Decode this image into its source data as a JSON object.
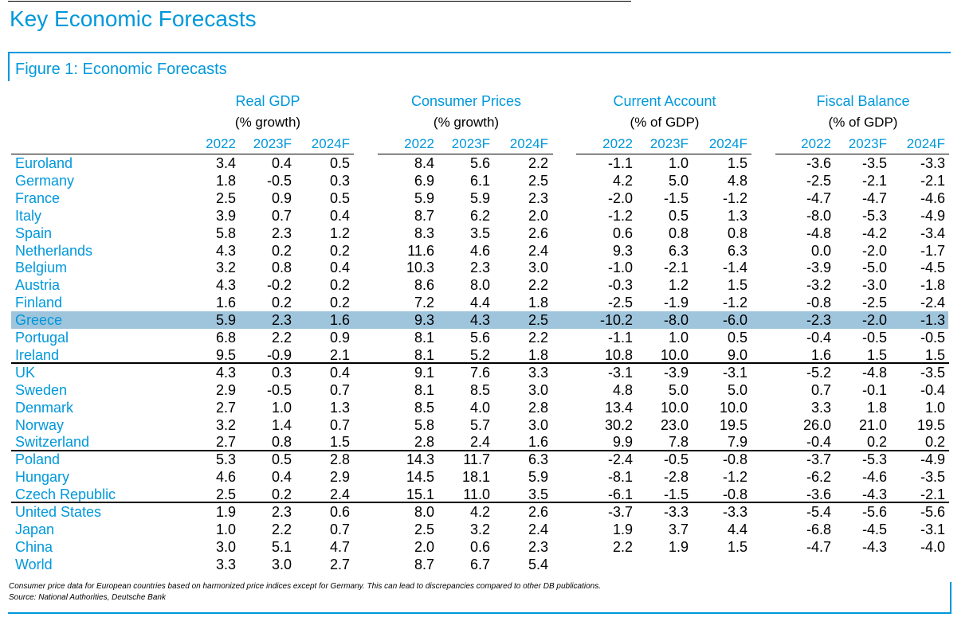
{
  "page_title": "Key Economic Forecasts",
  "figure_title": "Figure 1: Economic Forecasts",
  "groups": [
    {
      "title": "Real GDP",
      "unit": "(% growth)",
      "years": [
        "2022",
        "2023F",
        "2024F"
      ]
    },
    {
      "title": "Consumer Prices",
      "unit": "(% growth)",
      "years": [
        "2022",
        "2023F",
        "2024F"
      ]
    },
    {
      "title": "Current Account",
      "unit": "(% of GDP)",
      "years": [
        "2022",
        "2023F",
        "2024F"
      ]
    },
    {
      "title": "Fiscal Balance",
      "unit": "(% of GDP)",
      "years": [
        "2022",
        "2023F",
        "2024F"
      ]
    }
  ],
  "rows": [
    {
      "country": "Euroland",
      "values": [
        "3.4",
        "0.4",
        "0.5",
        "8.4",
        "5.6",
        "2.2",
        "-1.1",
        "1.0",
        "1.5",
        "-3.6",
        "-3.5",
        "-3.3"
      ]
    },
    {
      "country": "Germany",
      "values": [
        "1.8",
        "-0.5",
        "0.3",
        "6.9",
        "6.1",
        "2.5",
        "4.2",
        "5.0",
        "4.8",
        "-2.5",
        "-2.1",
        "-2.1"
      ]
    },
    {
      "country": "France",
      "values": [
        "2.5",
        "0.9",
        "0.5",
        "5.9",
        "5.9",
        "2.3",
        "-2.0",
        "-1.5",
        "-1.2",
        "-4.7",
        "-4.7",
        "-4.6"
      ]
    },
    {
      "country": "Italy",
      "values": [
        "3.9",
        "0.7",
        "0.4",
        "8.7",
        "6.2",
        "2.0",
        "-1.2",
        "0.5",
        "1.3",
        "-8.0",
        "-5.3",
        "-4.9"
      ]
    },
    {
      "country": "Spain",
      "values": [
        "5.8",
        "2.3",
        "1.2",
        "8.3",
        "3.5",
        "2.6",
        "0.6",
        "0.8",
        "0.8",
        "-4.8",
        "-4.2",
        "-3.4"
      ]
    },
    {
      "country": "Netherlands",
      "values": [
        "4.3",
        "0.2",
        "0.2",
        "11.6",
        "4.6",
        "2.4",
        "9.3",
        "6.3",
        "6.3",
        "0.0",
        "-2.0",
        "-1.7"
      ]
    },
    {
      "country": "Belgium",
      "values": [
        "3.2",
        "0.8",
        "0.4",
        "10.3",
        "2.3",
        "3.0",
        "-1.0",
        "-2.1",
        "-1.4",
        "-3.9",
        "-5.0",
        "-4.5"
      ]
    },
    {
      "country": "Austria",
      "values": [
        "4.3",
        "-0.2",
        "0.2",
        "8.6",
        "8.0",
        "2.2",
        "-0.3",
        "1.2",
        "1.5",
        "-3.2",
        "-3.0",
        "-1.8"
      ]
    },
    {
      "country": "Finland",
      "values": [
        "1.6",
        "0.2",
        "0.2",
        "7.2",
        "4.4",
        "1.8",
        "-2.5",
        "-1.9",
        "-1.2",
        "-0.8",
        "-2.5",
        "-2.4"
      ]
    },
    {
      "country": "Greece",
      "values": [
        "5.9",
        "2.3",
        "1.6",
        "9.3",
        "4.3",
        "2.5",
        "-10.2",
        "-8.0",
        "-6.0",
        "-2.3",
        "-2.0",
        "-1.3"
      ],
      "highlight": true
    },
    {
      "country": "Portugal",
      "values": [
        "6.8",
        "2.2",
        "0.9",
        "8.1",
        "5.6",
        "2.2",
        "-1.1",
        "1.0",
        "0.5",
        "-0.4",
        "-0.5",
        "-0.5"
      ]
    },
    {
      "country": "Ireland",
      "values": [
        "9.5",
        "-0.9",
        "2.1",
        "8.1",
        "5.2",
        "1.8",
        "10.8",
        "10.0",
        "9.0",
        "1.6",
        "1.5",
        "1.5"
      ]
    },
    {
      "country": "UK",
      "values": [
        "4.3",
        "0.3",
        "0.4",
        "9.1",
        "7.6",
        "3.3",
        "-3.1",
        "-3.9",
        "-3.1",
        "-5.2",
        "-4.8",
        "-3.5"
      ]
    },
    {
      "country": "Sweden",
      "values": [
        "2.9",
        "-0.5",
        "0.7",
        "8.1",
        "8.5",
        "3.0",
        "4.8",
        "5.0",
        "5.0",
        "0.7",
        "-0.1",
        "-0.4"
      ]
    },
    {
      "country": "Denmark",
      "values": [
        "2.7",
        "1.0",
        "1.3",
        "8.5",
        "4.0",
        "2.8",
        "13.4",
        "10.0",
        "10.0",
        "3.3",
        "1.8",
        "1.0"
      ]
    },
    {
      "country": "Norway",
      "values": [
        "3.2",
        "1.4",
        "0.7",
        "5.8",
        "5.7",
        "3.0",
        "30.2",
        "23.0",
        "19.5",
        "26.0",
        "21.0",
        "19.5"
      ]
    },
    {
      "country": "Switzerland",
      "values": [
        "2.7",
        "0.8",
        "1.5",
        "2.8",
        "2.4",
        "1.6",
        "9.9",
        "7.8",
        "7.9",
        "-0.4",
        "0.2",
        "0.2"
      ]
    },
    {
      "country": "Poland",
      "values": [
        "5.3",
        "0.5",
        "2.8",
        "14.3",
        "11.7",
        "6.3",
        "-2.4",
        "-0.5",
        "-0.8",
        "-3.7",
        "-5.3",
        "-4.9"
      ]
    },
    {
      "country": "Hungary",
      "values": [
        "4.6",
        "0.4",
        "2.9",
        "14.5",
        "18.1",
        "5.9",
        "-8.1",
        "-2.8",
        "-1.2",
        "-6.2",
        "-4.6",
        "-3.5"
      ]
    },
    {
      "country": "Czech Republic",
      "values": [
        "2.5",
        "0.2",
        "2.4",
        "15.1",
        "11.0",
        "3.5",
        "-6.1",
        "-1.5",
        "-0.8",
        "-3.6",
        "-4.3",
        "-2.1"
      ]
    },
    {
      "country": "United States",
      "values": [
        "1.9",
        "2.3",
        "0.6",
        "8.0",
        "4.2",
        "2.6",
        "-3.7",
        "-3.3",
        "-3.3",
        "-5.4",
        "-5.6",
        "-5.6"
      ]
    },
    {
      "country": "Japan",
      "values": [
        "1.0",
        "2.2",
        "0.7",
        "2.5",
        "3.2",
        "2.4",
        "1.9",
        "3.7",
        "4.4",
        "-6.8",
        "-4.5",
        "-3.1"
      ]
    },
    {
      "country": "China",
      "values": [
        "3.0",
        "5.1",
        "4.7",
        "2.0",
        "0.6",
        "2.3",
        "2.2",
        "1.9",
        "1.5",
        "-4.7",
        "-4.3",
        "-4.0"
      ]
    },
    {
      "country": "World",
      "values": [
        "3.3",
        "3.0",
        "2.7",
        "8.7",
        "6.7",
        "5.4",
        "",
        "",
        "",
        "",
        "",
        ""
      ]
    }
  ],
  "footnote": "Consumer price data for European countries based on harmonized price indices except for Germany. This can lead to discrepancies compared to other DB publications.",
  "source": "Source: National Authorities, Deutsche Bank",
  "colors": {
    "accent": "#0098db",
    "highlight": "#9fc5dd"
  }
}
